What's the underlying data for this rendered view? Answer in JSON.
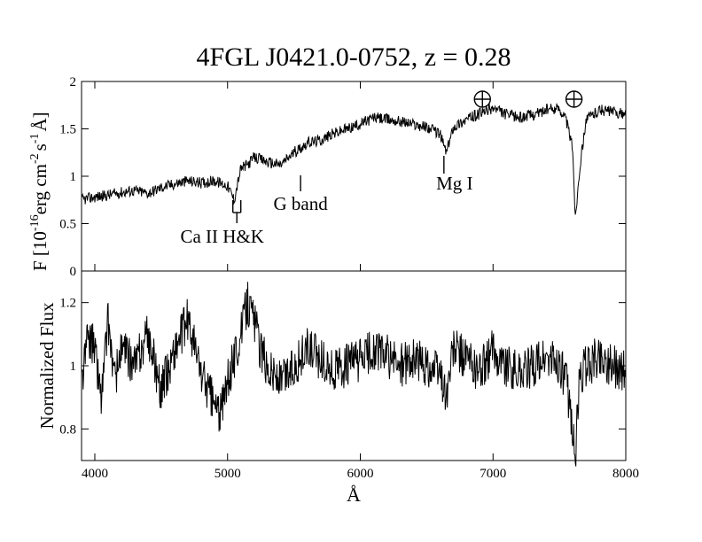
{
  "chart_data": [
    {
      "type": "line",
      "title": "4FGL J0421.0-0752, z = 0.28",
      "ylabel": {
        "prefix": "F [10",
        "exp1": "-16",
        "mid": "erg cm",
        "exp2": "-2",
        "s": "s",
        "exp3": "-1",
        "end": "Å]"
      },
      "xlim": [
        3900,
        8000
      ],
      "ylim": [
        0,
        2
      ],
      "yticks": [
        "0",
        "0.5",
        "1",
        "1.5",
        "2"
      ],
      "grid": false,
      "series": [
        {
          "x": [
            3900,
            4000,
            4100,
            4200,
            4300,
            4400,
            4500,
            4600,
            4700,
            4800,
            4900,
            5000,
            5050,
            5080,
            5100,
            5150,
            5200,
            5300,
            5400,
            5500,
            5600,
            5700,
            5800,
            5900,
            6000,
            6100,
            6200,
            6300,
            6400,
            6500,
            6600,
            6650,
            6700,
            6800,
            6900,
            7000,
            7100,
            7200,
            7300,
            7400,
            7500,
            7550,
            7600,
            7620,
            7650,
            7700,
            7800,
            7900,
            8000
          ],
          "y": [
            0.75,
            0.78,
            0.8,
            0.83,
            0.85,
            0.82,
            0.88,
            0.92,
            0.95,
            0.93,
            0.95,
            0.9,
            0.75,
            0.95,
            1.08,
            1.12,
            1.2,
            1.15,
            1.12,
            1.25,
            1.35,
            1.38,
            1.45,
            1.5,
            1.55,
            1.62,
            1.6,
            1.58,
            1.55,
            1.52,
            1.45,
            1.25,
            1.52,
            1.6,
            1.66,
            1.72,
            1.65,
            1.62,
            1.65,
            1.7,
            1.72,
            1.6,
            1.3,
            0.55,
            1.05,
            1.6,
            1.7,
            1.68,
            1.65
          ]
        }
      ],
      "annotations": [
        {
          "label": "Ca II H&K",
          "x": 5070
        },
        {
          "label": "G band",
          "x": 5550
        },
        {
          "label": "Mg I",
          "x": 6630
        },
        {
          "label": "⊕",
          "x": 6920
        },
        {
          "label": "⊕",
          "x": 7610
        }
      ]
    },
    {
      "type": "line",
      "xlabel": "Å",
      "ylabel": "Normalized Flux",
      "xlim": [
        3900,
        8000
      ],
      "ylim": [
        0.7,
        1.3
      ],
      "xticks": [
        "4000",
        "5000",
        "6000",
        "7000",
        "8000"
      ],
      "yticks": [
        "0.8",
        "1",
        "1.2"
      ],
      "grid": false,
      "series": [
        {
          "x": [
            3900,
            3950,
            4000,
            4050,
            4100,
            4150,
            4200,
            4300,
            4400,
            4500,
            4600,
            4700,
            4800,
            4900,
            4950,
            5000,
            5100,
            5150,
            5200,
            5250,
            5300,
            5400,
            5500,
            5600,
            5700,
            5800,
            5900,
            6000,
            6100,
            6200,
            6300,
            6400,
            6500,
            6600,
            6650,
            6700,
            6800,
            6900,
            7000,
            7100,
            7200,
            7300,
            7400,
            7500,
            7550,
            7600,
            7620,
            7650,
            7700,
            7800,
            7900,
            8000
          ],
          "y": [
            0.95,
            1.1,
            1.05,
            0.9,
            1.15,
            0.95,
            1.05,
            1.0,
            1.1,
            0.92,
            1.05,
            1.15,
            0.98,
            0.88,
            0.85,
            0.95,
            1.1,
            1.2,
            1.15,
            1.05,
            1.0,
            0.95,
            1.0,
            1.05,
            1.02,
            0.98,
            1.0,
            1.02,
            1.05,
            1.03,
            1.0,
            1.02,
            1.0,
            0.98,
            0.9,
            1.05,
            1.02,
            0.98,
            1.05,
            1.0,
            0.98,
            1.0,
            1.02,
            1.0,
            0.95,
            0.8,
            0.72,
            0.95,
            1.0,
            1.03,
            1.0,
            0.98
          ]
        }
      ]
    }
  ]
}
